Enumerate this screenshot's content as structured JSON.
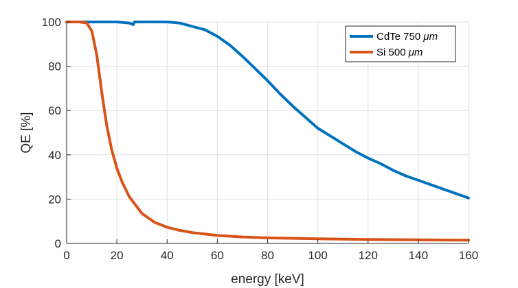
{
  "chart_data": {
    "type": "line",
    "title": "",
    "xlabel": "energy [keV]",
    "ylabel": "QE [%]",
    "xlim": [
      0,
      160
    ],
    "ylim": [
      0,
      100
    ],
    "xticks": [
      "0",
      "20",
      "40",
      "60",
      "80",
      "100",
      "120",
      "140",
      "160"
    ],
    "yticks": [
      "0",
      "20",
      "40",
      "60",
      "80",
      "100"
    ],
    "grid": true,
    "legend_position": "top-right",
    "series": [
      {
        "name": "CdTe 750 μm",
        "label_prefix": "CdTe 750 ",
        "label_unit": "μm",
        "color": "#0072BD",
        "x": [
          0,
          5,
          10,
          15,
          20,
          25,
          26.5,
          27,
          30,
          35,
          40,
          45,
          50,
          55,
          60,
          65,
          70,
          75,
          80,
          85,
          90,
          95,
          100,
          105,
          110,
          115,
          120,
          125,
          130,
          135,
          140,
          145,
          150,
          155,
          160
        ],
        "y": [
          100,
          100,
          100,
          100,
          100,
          99.5,
          98.8,
          100,
          100,
          100,
          100,
          99.5,
          98,
          96.5,
          93.5,
          89.5,
          84.5,
          79,
          73.5,
          67.5,
          62,
          57,
          52,
          48.5,
          45,
          41.5,
          38.5,
          36,
          33,
          30.5,
          28.5,
          26.5,
          24.5,
          22.5,
          20.5
        ]
      },
      {
        "name": "Si 500 μm",
        "label_prefix": "Si 500 ",
        "label_unit": "μm",
        "color": "#D95319",
        "x": [
          0,
          5,
          8,
          10,
          12,
          14,
          16,
          18,
          20,
          22,
          25,
          30,
          35,
          40,
          45,
          50,
          60,
          70,
          80,
          100,
          120,
          140,
          160
        ],
        "y": [
          100,
          100,
          99.5,
          96,
          85,
          68,
          53,
          42,
          34,
          28,
          21,
          13.5,
          9.5,
          7.3,
          5.9,
          4.9,
          3.6,
          2.9,
          2.5,
          2.1,
          1.8,
          1.6,
          1.5
        ]
      }
    ]
  }
}
